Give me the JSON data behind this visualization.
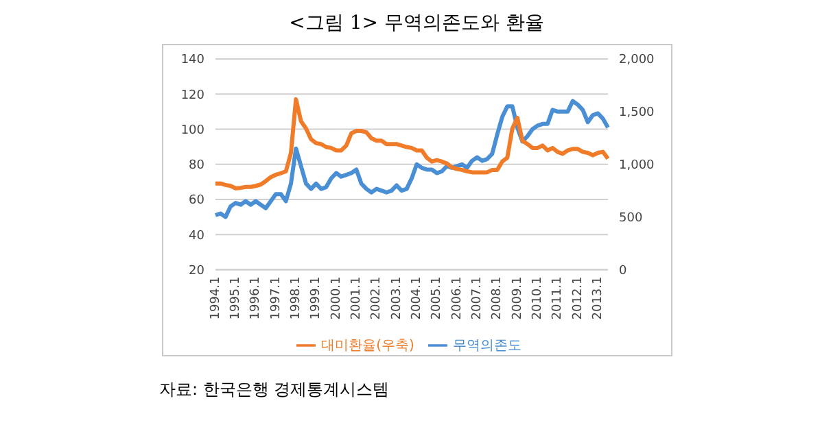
{
  "chart_data": {
    "type": "line",
    "title": "<그림 1> 무역의존도와 환율",
    "annotations": [
      "자료: 한국은행 경제통계시스템"
    ],
    "categories": [
      "1994.1",
      null,
      null,
      null,
      "1995.1",
      null,
      null,
      null,
      "1996.1",
      null,
      null,
      null,
      "1997.1",
      null,
      null,
      null,
      "1998.1",
      null,
      null,
      null,
      "1999.1",
      null,
      null,
      null,
      "2000.1",
      null,
      null,
      null,
      "2001.1",
      null,
      null,
      null,
      "2002.1",
      null,
      null,
      null,
      "2003.1",
      null,
      null,
      null,
      "2004.1",
      null,
      null,
      null,
      "2005.1",
      null,
      null,
      null,
      "2006.1",
      null,
      null,
      null,
      "2007.1",
      null,
      null,
      null,
      "2008.1",
      null,
      null,
      null,
      "2009.1",
      null,
      null,
      null,
      "2010.1",
      null,
      null,
      null,
      "2011.1",
      null,
      null,
      null,
      "2012.1",
      null,
      null,
      null,
      "2013.1",
      null,
      null
    ],
    "series": [
      {
        "name": "무역의존도",
        "color": "#4a8fd4",
        "values": [
          51,
          52,
          50,
          56,
          58,
          57,
          59,
          57,
          59,
          57,
          55,
          59,
          63,
          63,
          59,
          69,
          89,
          79,
          69,
          66,
          69,
          66,
          67,
          72,
          75,
          73,
          74,
          75,
          77,
          69,
          66,
          64,
          66,
          65,
          64,
          65,
          68,
          65,
          66,
          72,
          80,
          78,
          77,
          77,
          75,
          76,
          79,
          78,
          79,
          80,
          78,
          82,
          84,
          82,
          83,
          86,
          97,
          107,
          113,
          113,
          101,
          93,
          96,
          100,
          102,
          103,
          103,
          111,
          110,
          110,
          110,
          116,
          114,
          111,
          104,
          108,
          109,
          106,
          101
        ]
      },
      {
        "name": "대미환율(우축)",
        "color": "#f07c2a",
        "axis": "y2",
        "values": [
          818,
          818,
          804,
          795,
          772,
          776,
          785,
          785,
          795,
          808,
          841,
          878,
          901,
          915,
          933,
          1109,
          1617,
          1409,
          1340,
          1238,
          1201,
          1192,
          1164,
          1155,
          1132,
          1132,
          1178,
          1294,
          1317,
          1317,
          1303,
          1247,
          1224,
          1224,
          1192,
          1192,
          1192,
          1178,
          1164,
          1155,
          1132,
          1132,
          1063,
          1026,
          1040,
          1026,
          1007,
          970,
          956,
          947,
          933,
          924,
          924,
          924,
          924,
          947,
          947,
          1026,
          1063,
          1340,
          1441,
          1224,
          1192,
          1155,
          1155,
          1178,
          1132,
          1155,
          1118,
          1100,
          1132,
          1146,
          1146,
          1118,
          1109,
          1086,
          1109,
          1118,
          1053
        ]
      }
    ],
    "ylim": [
      20,
      140
    ],
    "yticks": [
      20,
      40,
      60,
      80,
      100,
      120,
      140
    ],
    "y2lim": [
      0,
      2000
    ],
    "y2ticks": [
      0,
      500,
      {
        "value": 1000,
        "label": "1,000"
      },
      {
        "value": 1500,
        "label": "1,500"
      },
      {
        "value": 2000,
        "label": "2,000"
      }
    ],
    "grid": "y",
    "legend": "bottom",
    "marker": "none",
    "line_style": "solid"
  }
}
